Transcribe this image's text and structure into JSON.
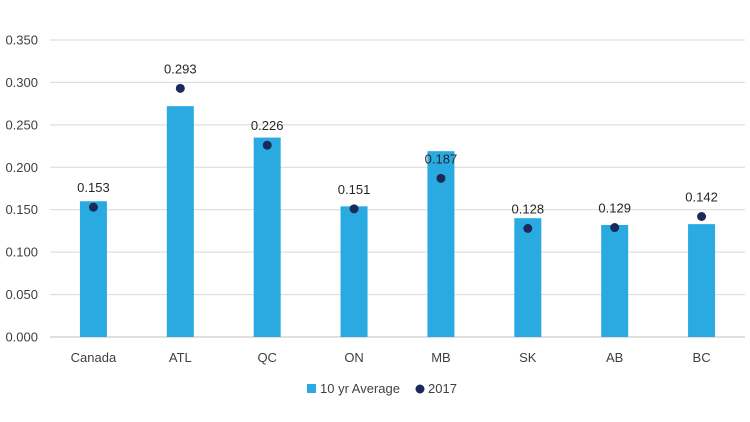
{
  "chart_data": {
    "type": "bar",
    "title": "",
    "xlabel": "",
    "ylabel": "",
    "ylim": [
      0,
      0.35
    ],
    "yticks": [
      "0.000",
      "0.050",
      "0.100",
      "0.150",
      "0.200",
      "0.250",
      "0.300",
      "0.350"
    ],
    "grid": true,
    "legend_position": "bottom",
    "categories": [
      "Canada",
      "ATL",
      "QC",
      "ON",
      "MB",
      "SK",
      "AB",
      "BC"
    ],
    "series": [
      {
        "name": "10 yr Average",
        "kind": "bar",
        "color": "#29ABE2",
        "values": [
          0.16,
          0.272,
          0.235,
          0.154,
          0.219,
          0.14,
          0.132,
          0.133
        ]
      },
      {
        "name": "2017",
        "kind": "marker",
        "color": "#1B2A5B",
        "values": [
          0.153,
          0.293,
          0.226,
          0.151,
          0.187,
          0.128,
          0.129,
          0.142
        ],
        "labels": [
          "0.153",
          "0.293",
          "0.226",
          "0.151",
          "0.187",
          "0.128",
          "0.129",
          "0.142"
        ]
      }
    ]
  }
}
